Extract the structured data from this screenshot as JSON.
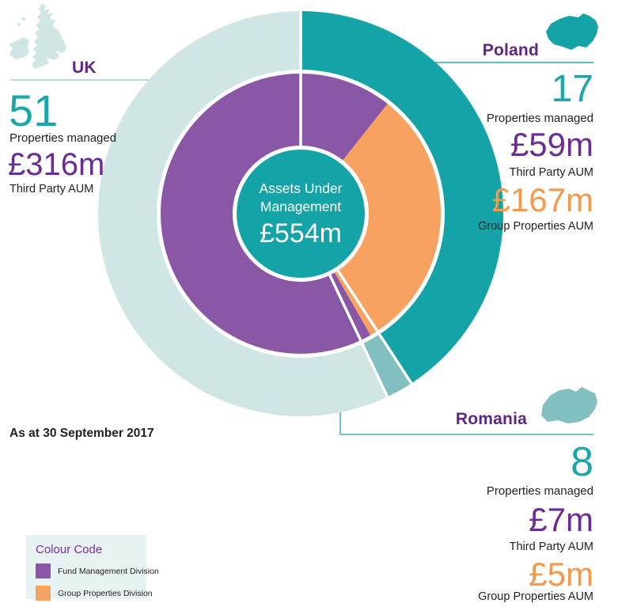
{
  "colors": {
    "teal": "#14a3a6",
    "pale_teal": "#cfe6e4",
    "seafoam": "#82bfc0",
    "purple": "#8a57a6",
    "orange": "#f7a260",
    "heading_purple": "#5f2583",
    "number_purple": "#6b2d94",
    "number_teal": "#1ba7aa",
    "number_orange": "#f7994c",
    "text_dark": "#231f20",
    "legend_bg": "#e7f2f2",
    "legend_title": "#7a2f9c",
    "line_uk": "#9ed1d1",
    "line_poland": "#2aa5a7",
    "line_romania": "#4aacae"
  },
  "center": {
    "label": "Assets Under\nManagement",
    "value": "£554m"
  },
  "as_at": "As at 30 September 2017",
  "sections": {
    "uk": {
      "name": "UK",
      "properties_managed": "51",
      "properties_label": "Properties managed",
      "third_party_aum": "£316m",
      "third_party_label": "Third Party AUM"
    },
    "poland": {
      "name": "Poland",
      "properties_managed": "17",
      "properties_label": "Properties managed",
      "third_party_aum": "£59m",
      "third_party_label": "Third Party AUM",
      "group_aum": "£167m",
      "group_label": "Group Properties AUM"
    },
    "romania": {
      "name": "Romania",
      "properties_managed": "8",
      "properties_label": "Properties managed",
      "third_party_aum": "£7m",
      "third_party_label": "Third Party AUM",
      "group_aum": "£5m",
      "group_label": "Group Properties AUM"
    }
  },
  "legend": {
    "title": "Colour Code",
    "items": [
      {
        "label": "Fund Management Division",
        "color": "#8a57a6"
      },
      {
        "label": "Group Properties Division",
        "color": "#f7a260"
      }
    ]
  },
  "chart_data": {
    "type": "donut",
    "title": "Assets Under Management",
    "center_label": "Assets Under Management",
    "center_value_label": "£554m",
    "total_value": 554,
    "units": "£m",
    "start_angle_deg": 0,
    "clockwise": true,
    "rings": {
      "outer": {
        "name": "Country",
        "segments": [
          {
            "id": "poland",
            "label": "Poland",
            "value": 226,
            "color": "#14a3a6"
          },
          {
            "id": "romania",
            "label": "Romania",
            "value": 12,
            "color": "#82bfc0"
          },
          {
            "id": "uk",
            "label": "UK",
            "value": 316,
            "color": "#cfe6e4"
          }
        ]
      },
      "inner": {
        "name": "Division",
        "segments": [
          {
            "id": "poland-third-party",
            "label": "Poland - Third Party AUM (Fund Management Division)",
            "value": 59,
            "color": "#8a57a6"
          },
          {
            "id": "poland-group",
            "label": "Poland - Group Properties AUM (Group Properties Division)",
            "value": 167,
            "color": "#f7a260"
          },
          {
            "id": "romania-group",
            "label": "Romania - Group Properties AUM (Group Properties Division)",
            "value": 5,
            "color": "#f7a260"
          },
          {
            "id": "romania-third-party",
            "label": "Romania - Third Party AUM (Fund Management Division)",
            "value": 7,
            "color": "#8a57a6"
          },
          {
            "id": "uk-third-party",
            "label": "UK - Third Party AUM (Fund Management Division)",
            "value": 316,
            "color": "#8a57a6"
          }
        ]
      }
    },
    "annotations": [
      {
        "country": "UK",
        "properties_managed": 51,
        "third_party_aum": "£316m"
      },
      {
        "country": "Poland",
        "properties_managed": 17,
        "third_party_aum": "£59m",
        "group_properties_aum": "£167m"
      },
      {
        "country": "Romania",
        "properties_managed": 8,
        "third_party_aum": "£7m",
        "group_properties_aum": "£5m"
      }
    ],
    "legend": [
      "Fund Management Division",
      "Group Properties Division"
    ],
    "as_at": "As at 30 September 2017"
  }
}
